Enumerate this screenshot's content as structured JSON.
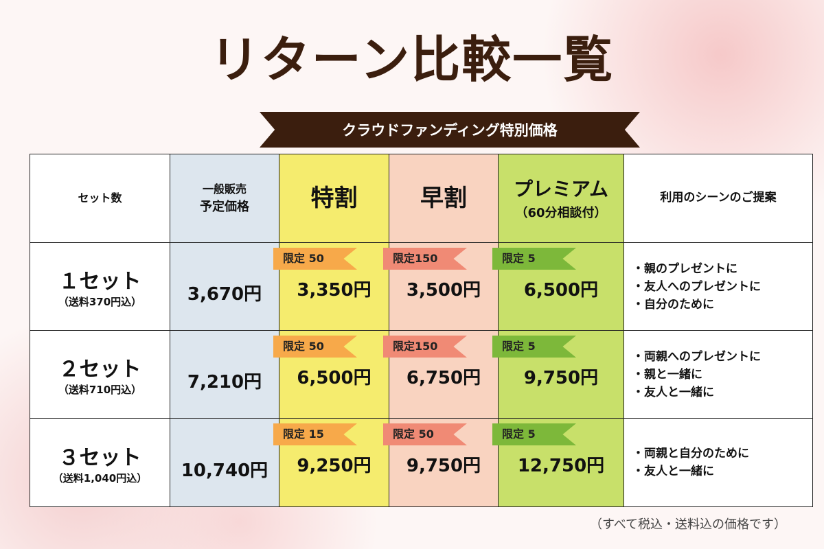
{
  "header": {
    "title": "リターン比較一覧",
    "banner": "クラウドファンディング特別価格"
  },
  "table": {
    "columns": [
      {
        "lines": [
          "セット数"
        ]
      },
      {
        "lines": [
          "一般販売",
          "予定価格"
        ]
      },
      {
        "lines": [
          "特割"
        ]
      },
      {
        "lines": [
          "早割"
        ]
      },
      {
        "lines": [
          "プレミアム",
          "（60分相談付）"
        ]
      },
      {
        "lines": [
          "利用のシーンのご提案"
        ]
      }
    ],
    "rows": [
      {
        "set": "１セット",
        "shipping": "（送料370円込）",
        "regular": "3,670円",
        "offers": [
          {
            "limit": "限定 50",
            "price": "3,350円"
          },
          {
            "limit": "限定150",
            "price": "3,500円"
          },
          {
            "limit": "限定 5",
            "price": "6,500円"
          }
        ],
        "scenes": [
          "・親のプレゼントに",
          "・友人へのプレゼントに",
          "・自分のために"
        ]
      },
      {
        "set": "２セット",
        "shipping": "（送料710円込）",
        "regular": "7,210円",
        "offers": [
          {
            "limit": "限定 50",
            "price": "6,500円"
          },
          {
            "limit": "限定150",
            "price": "6,750円"
          },
          {
            "limit": "限定 5",
            "price": "9,750円"
          }
        ],
        "scenes": [
          "・両親へのプレゼントに",
          "・親と一緒に",
          "・友人と一緒に"
        ]
      },
      {
        "set": "３セット",
        "shipping": "（送料1,040円込）",
        "regular": "10,740円",
        "offers": [
          {
            "limit": "限定 15",
            "price": "9,250円"
          },
          {
            "limit": "限定 50",
            "price": "9,750円"
          },
          {
            "limit": "限定 5",
            "price": "12,750円"
          }
        ],
        "scenes": [
          "・両親と自分のために",
          "・友人と一緒に"
        ]
      }
    ]
  },
  "footer": {
    "note": "（すべて税込・送料込の価格です）"
  }
}
